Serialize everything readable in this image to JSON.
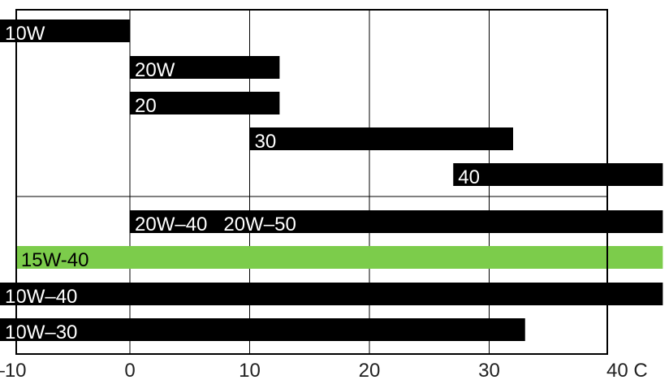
{
  "chart_data": {
    "type": "bar",
    "orientation": "horizontal-range",
    "xlim": [
      -11,
      40
    ],
    "grid": true,
    "x_ticks": [
      -10,
      0,
      10,
      20,
      30,
      40
    ],
    "x_tick_labels": [
      "–10",
      "0",
      "10",
      "20",
      "30",
      "40 C"
    ],
    "bars": [
      {
        "label": "10W",
        "start": -11,
        "end": 0,
        "color": "#000000"
      },
      {
        "label": "20W",
        "start": 0,
        "end": 12.5,
        "color": "#000000"
      },
      {
        "label": "20",
        "start": 0,
        "end": 12.5,
        "color": "#000000"
      },
      {
        "label": "30",
        "start": 10,
        "end": 32,
        "color": "#000000"
      },
      {
        "label": "40",
        "start": 27,
        "end": 44.5,
        "color": "#000000"
      },
      {
        "label": "20W–40   20W–50",
        "start": 0,
        "end": 44.5,
        "color": "#000000"
      },
      {
        "label": "15W-40",
        "start": -9.5,
        "end": 44.5,
        "color": "#7ccc4b"
      },
      {
        "label": "10W–40",
        "start": -11,
        "end": 44.5,
        "color": "#000000"
      },
      {
        "label": "10W–30",
        "start": -11,
        "end": 33,
        "color": "#000000"
      }
    ],
    "label_color_on_black": "#ffffff",
    "label_color_on_green": "#000000"
  }
}
